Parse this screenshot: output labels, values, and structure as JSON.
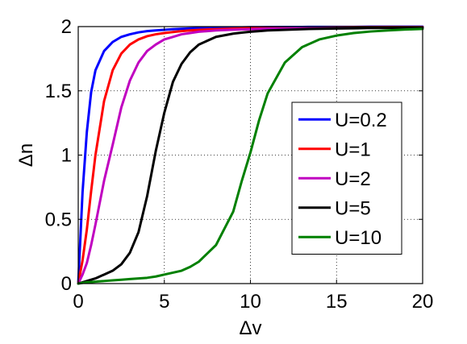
{
  "chart_data": {
    "type": "line",
    "xlabel": "Δv",
    "ylabel": "Δn",
    "xlim": [
      0,
      20
    ],
    "ylim": [
      0,
      2
    ],
    "xticks": [
      0,
      5,
      10,
      15,
      20
    ],
    "yticks": [
      0,
      0.5,
      1,
      1.5,
      2
    ],
    "xtick_labels": [
      "0",
      "5",
      "10",
      "15",
      "20"
    ],
    "ytick_labels": [
      "0",
      "0.5",
      "1",
      "1.5",
      "2"
    ],
    "grid": true,
    "legend_position": "right",
    "x": [
      0,
      0.25,
      0.5,
      0.75,
      1,
      1.5,
      2,
      2.5,
      3,
      3.5,
      4,
      4.5,
      5,
      5.5,
      6,
      6.5,
      7,
      8,
      9,
      9.5,
      10,
      10.5,
      11,
      12,
      13,
      14,
      15,
      16,
      17,
      18,
      19,
      20
    ],
    "series": [
      {
        "name": "U=0.2",
        "color": "#0000ff",
        "values": [
          0.0,
          0.71,
          1.18,
          1.49,
          1.66,
          1.81,
          1.88,
          1.92,
          1.94,
          1.955,
          1.965,
          1.97,
          1.975,
          1.98,
          1.983,
          1.986,
          1.988,
          1.991,
          1.993,
          1.994,
          1.995,
          1.995,
          1.996,
          1.997,
          1.997,
          1.998,
          1.998,
          1.998,
          1.999,
          1.999,
          1.999,
          1.999
        ]
      },
      {
        "name": "U=1",
        "color": "#ff0000",
        "values": [
          0.0,
          0.18,
          0.42,
          0.72,
          1.0,
          1.42,
          1.66,
          1.79,
          1.86,
          1.9,
          1.925,
          1.94,
          1.95,
          1.958,
          1.965,
          1.97,
          1.974,
          1.98,
          1.984,
          1.986,
          1.988,
          1.989,
          1.99,
          1.992,
          1.993,
          1.994,
          1.995,
          1.996,
          1.996,
          1.997,
          1.997,
          1.997
        ]
      },
      {
        "name": "U=2",
        "color": "#c000c0",
        "values": [
          0.0,
          0.07,
          0.16,
          0.3,
          0.46,
          0.8,
          1.08,
          1.37,
          1.58,
          1.72,
          1.81,
          1.86,
          1.9,
          1.92,
          1.94,
          1.95,
          1.96,
          1.97,
          1.976,
          1.978,
          1.98,
          1.982,
          1.984,
          1.986,
          1.988,
          1.99,
          1.991,
          1.992,
          1.993,
          1.994,
          1.995,
          1.995
        ]
      },
      {
        "name": "U=5",
        "color": "#000000",
        "values": [
          0.0,
          0.01,
          0.02,
          0.03,
          0.04,
          0.07,
          0.1,
          0.15,
          0.24,
          0.4,
          0.68,
          1.03,
          1.33,
          1.57,
          1.71,
          1.8,
          1.86,
          1.92,
          1.945,
          1.953,
          1.96,
          1.965,
          1.97,
          1.975,
          1.98,
          1.983,
          1.985,
          1.987,
          1.989,
          1.99,
          1.991,
          1.992
        ]
      },
      {
        "name": "U=10",
        "color": "#008000",
        "values": [
          0.0,
          0.005,
          0.01,
          0.012,
          0.015,
          0.02,
          0.025,
          0.03,
          0.035,
          0.04,
          0.045,
          0.055,
          0.07,
          0.085,
          0.1,
          0.13,
          0.17,
          0.3,
          0.56,
          0.8,
          1.02,
          1.27,
          1.48,
          1.72,
          1.84,
          1.9,
          1.93,
          1.95,
          1.962,
          1.97,
          1.977,
          1.982
        ]
      }
    ]
  }
}
